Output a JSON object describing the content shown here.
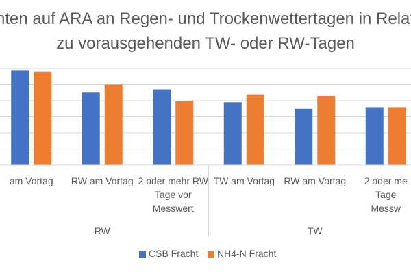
{
  "chart_data": {
    "type": "bar",
    "title_line1": "chten auf ARA an Regen- und Trockenwettertagen in Relat",
    "title_line2": "zu vorausgehenden TW- oder RW-Tagen",
    "categories": [
      [
        "am Vortag"
      ],
      [
        "RW am Vortag"
      ],
      [
        "2 oder mehr RW",
        "Tage vor",
        "Messwert"
      ],
      [
        "TW am Vortag"
      ],
      [
        "RW am Vortag"
      ],
      [
        "2 oder me",
        "Tage",
        "Messw"
      ]
    ],
    "groups": [
      {
        "label": "RW",
        "span": [
          0,
          2
        ]
      },
      {
        "label": "TW",
        "span": [
          3,
          5
        ]
      }
    ],
    "series": [
      {
        "name": "CSB Fracht",
        "color": "#4472C4",
        "values": [
          59,
          45,
          47,
          39,
          35,
          36
        ]
      },
      {
        "name": "NH4-N Fracht",
        "color": "#ED7D31",
        "values": [
          58,
          50,
          40,
          44,
          43,
          36
        ]
      }
    ],
    "ylim": [
      0,
      60
    ],
    "grid": true,
    "legend_position": "bottom"
  }
}
